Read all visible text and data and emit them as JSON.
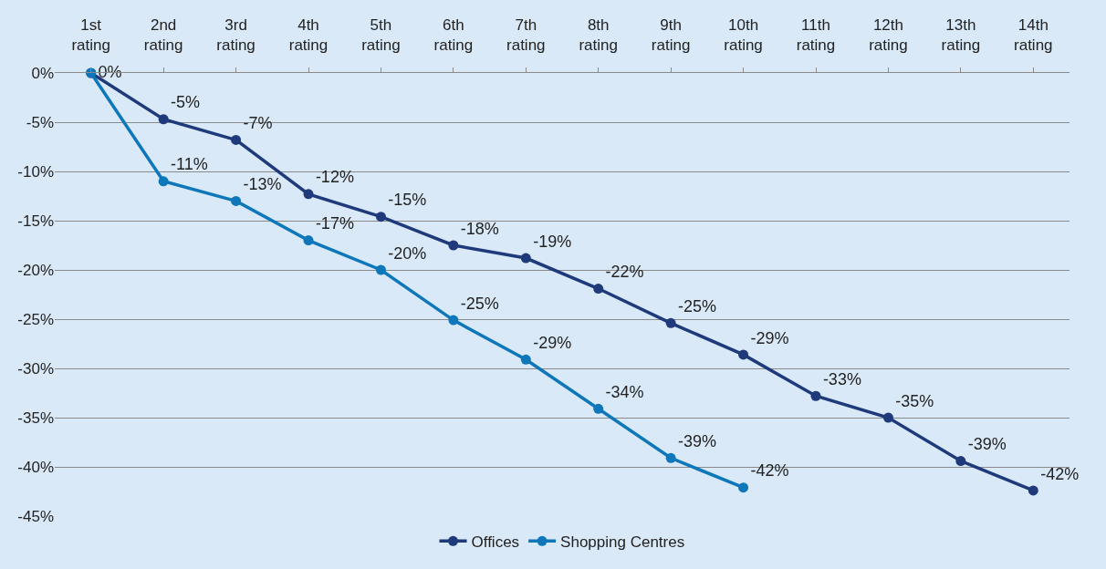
{
  "chart_data": {
    "type": "line",
    "categories": [
      "1st rating",
      "2nd rating",
      "3rd rating",
      "4th rating",
      "5th rating",
      "6th rating",
      "7th rating",
      "8th rating",
      "9th rating",
      "10th rating",
      "11th rating",
      "12th rating",
      "13th rating",
      "14th rating"
    ],
    "series": [
      {
        "name": "Offices",
        "color": "#1e3a7b",
        "values": [
          0,
          -4.7,
          -6.8,
          -12.3,
          -14.6,
          -17.5,
          -18.8,
          -21.9,
          -25.4,
          -28.6,
          -32.8,
          -35.0,
          -39.4,
          -42.4
        ],
        "value_labels": [
          "0%",
          "-5%",
          "-7%",
          "-12%",
          "-15%",
          "-18%",
          "-19%",
          "-22%",
          "-25%",
          "-29%",
          "-33%",
          "-35%",
          "-39%",
          "-42%"
        ]
      },
      {
        "name": "Shopping Centres",
        "color": "#0d77b9",
        "values": [
          0,
          -11.0,
          -13.0,
          -17.0,
          -20.0,
          -25.1,
          -29.1,
          -34.1,
          -39.1,
          -42.1,
          null,
          null,
          null,
          null
        ],
        "value_labels": [
          null,
          "-11%",
          "-13%",
          "-17%",
          "-20%",
          "-25%",
          "-29%",
          "-34%",
          "-39%",
          "-42%",
          null,
          null,
          null,
          null
        ]
      }
    ],
    "ylim": [
      -45,
      0
    ],
    "yticks": [
      {
        "value": 0,
        "label": "0%"
      },
      {
        "value": -5,
        "label": "-5%"
      },
      {
        "value": -10,
        "label": "-10%"
      },
      {
        "value": -15,
        "label": "-15%"
      },
      {
        "value": -20,
        "label": "-20%"
      },
      {
        "value": -25,
        "label": "-25%"
      },
      {
        "value": -30,
        "label": "-30%"
      },
      {
        "value": -35,
        "label": "-35%"
      },
      {
        "value": -40,
        "label": "-40%"
      },
      {
        "value": -45,
        "label": "-45%"
      }
    ],
    "grid": "y",
    "legend": "bottom",
    "marker": "circle",
    "line_style": "solid"
  }
}
